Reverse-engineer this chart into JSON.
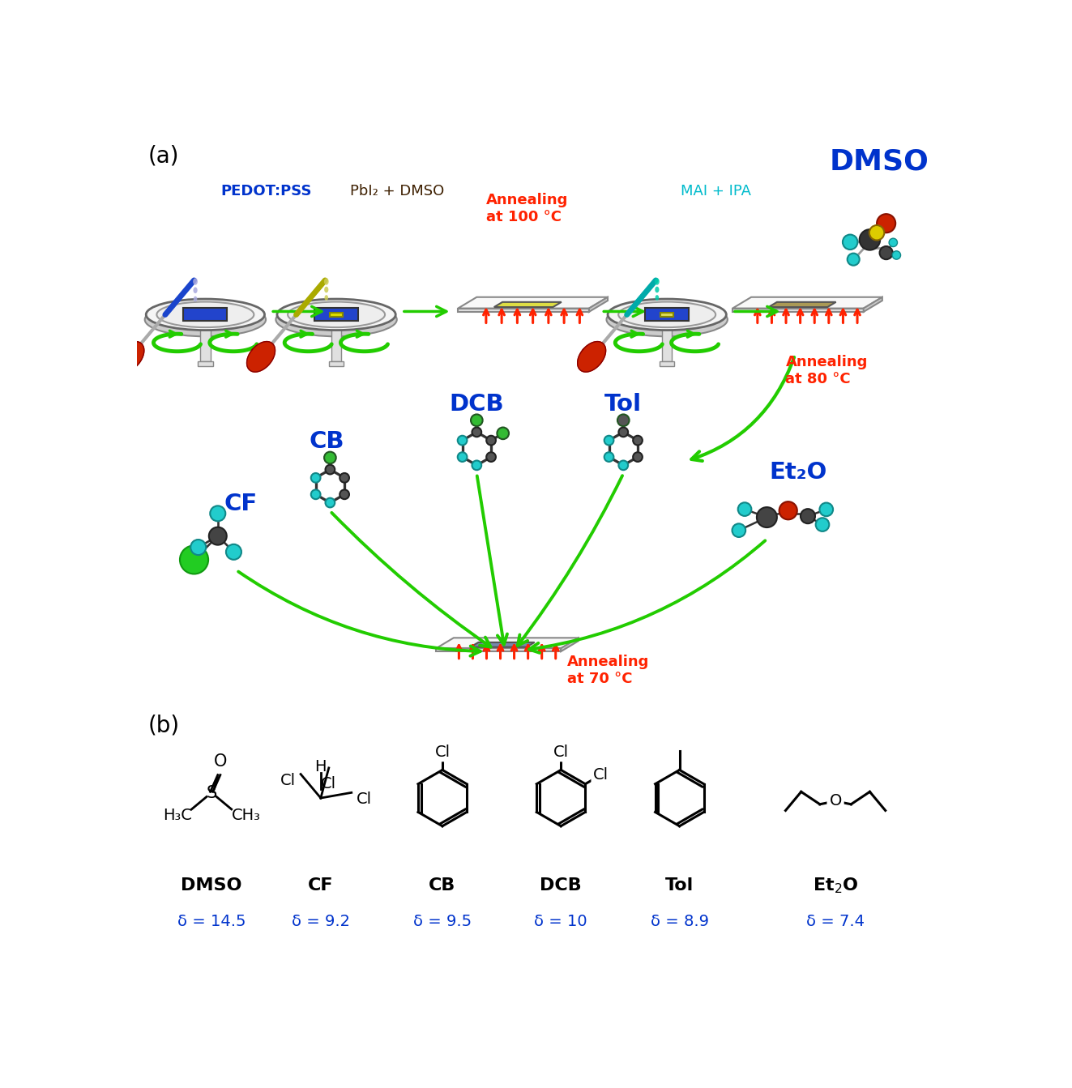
{
  "fig_width": 13.23,
  "fig_height": 13.43,
  "bg_color": "#ffffff",
  "panel_a_label": "(a)",
  "panel_b_label": "(b)",
  "green_arrow_color": "#22cc00",
  "red_heat_color": "#ff2200",
  "blue_label_color": "#0033cc",
  "cyan_label_color": "#00aacc",
  "black_color": "#000000",
  "step_labels": [
    "PEDOT:PSS",
    "PbI₂ + DMSO",
    "Annealing\nat 100 °C",
    "MAI + IPA",
    "Annealing\nat 80 °C"
  ],
  "step_label_colors": [
    "#0033cc",
    "#3d1f00",
    "#ff2200",
    "#00bbcc",
    "#ff2200"
  ],
  "dmso_label": "DMSO",
  "dmso_label_color": "#0033cc",
  "annealing_70": "Annealing\nat 70 °C",
  "annealing_70_color": "#ff2200",
  "panel_b_names": [
    "DMSO",
    "CF",
    "CB",
    "DCB",
    "Tol",
    "Et₂O"
  ],
  "panel_b_delta_labels": [
    "δ = 14.5",
    "δ = 9.2",
    "δ = 9.5",
    "δ = 10",
    "δ = 8.9",
    "δ = 7.4"
  ],
  "panel_b_delta_color": "#0033cc",
  "panel_b_name_color": "#000000",
  "solvent_label_color": "#0033cc",
  "solvent_labels": [
    "CB",
    "DCB",
    "Tol",
    "CF",
    "Et₂O"
  ]
}
